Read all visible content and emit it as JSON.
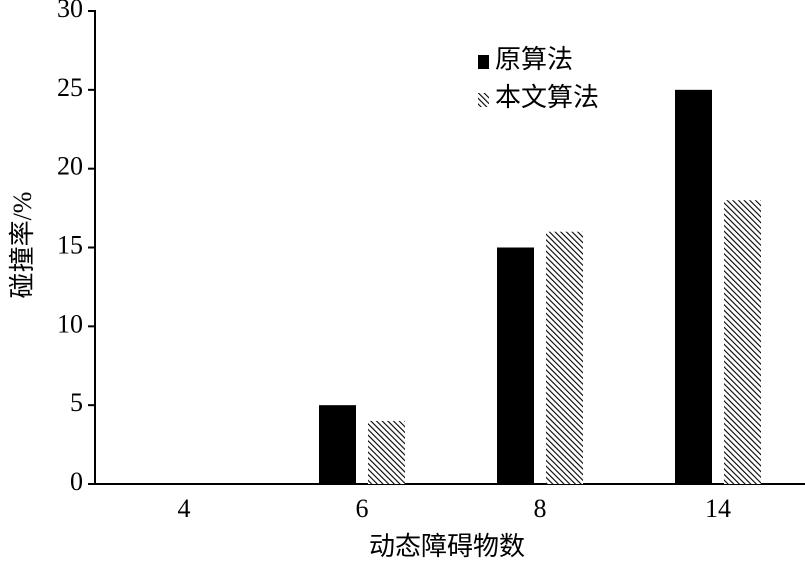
{
  "chart_data": {
    "type": "bar",
    "x_label": "动态障碍物数",
    "y_label": "碰撞率/%",
    "categories": [
      "4",
      "6",
      "8",
      "14"
    ],
    "series": [
      {
        "name": "原算法",
        "color": "#000000",
        "fill_style": "solid",
        "values": [
          0,
          5,
          15,
          25
        ]
      },
      {
        "name": "本文算法",
        "color": "#000000",
        "fill_style": "hatch",
        "values": [
          0,
          4,
          16,
          18
        ]
      }
    ],
    "ylim": [
      0,
      30
    ],
    "yticks": [
      0,
      5,
      10,
      15,
      20,
      25,
      30
    ],
    "grid": false,
    "legend": "upper right"
  }
}
